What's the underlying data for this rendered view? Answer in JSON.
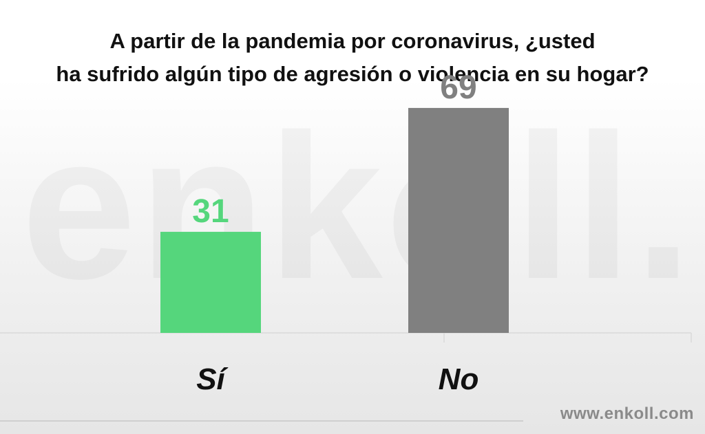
{
  "title_lines": [
    "A partir de la pandemia por coronavirus, ¿usted",
    "ha sufrido algún tipo de agresión o violencia en su hogar?"
  ],
  "watermark": "enkoll.",
  "footer": {
    "url": "www.enkoll.com"
  },
  "colors": {
    "si": "#55d67c",
    "no": "#808080",
    "axis": "#d9d9d9"
  },
  "chart_data": {
    "type": "bar",
    "categories": [
      "Sí",
      "No"
    ],
    "values": [
      31,
      69
    ],
    "data_labels": [
      "31",
      "69"
    ],
    "ylim": [
      0,
      100
    ],
    "grid": false,
    "legend": "none"
  }
}
